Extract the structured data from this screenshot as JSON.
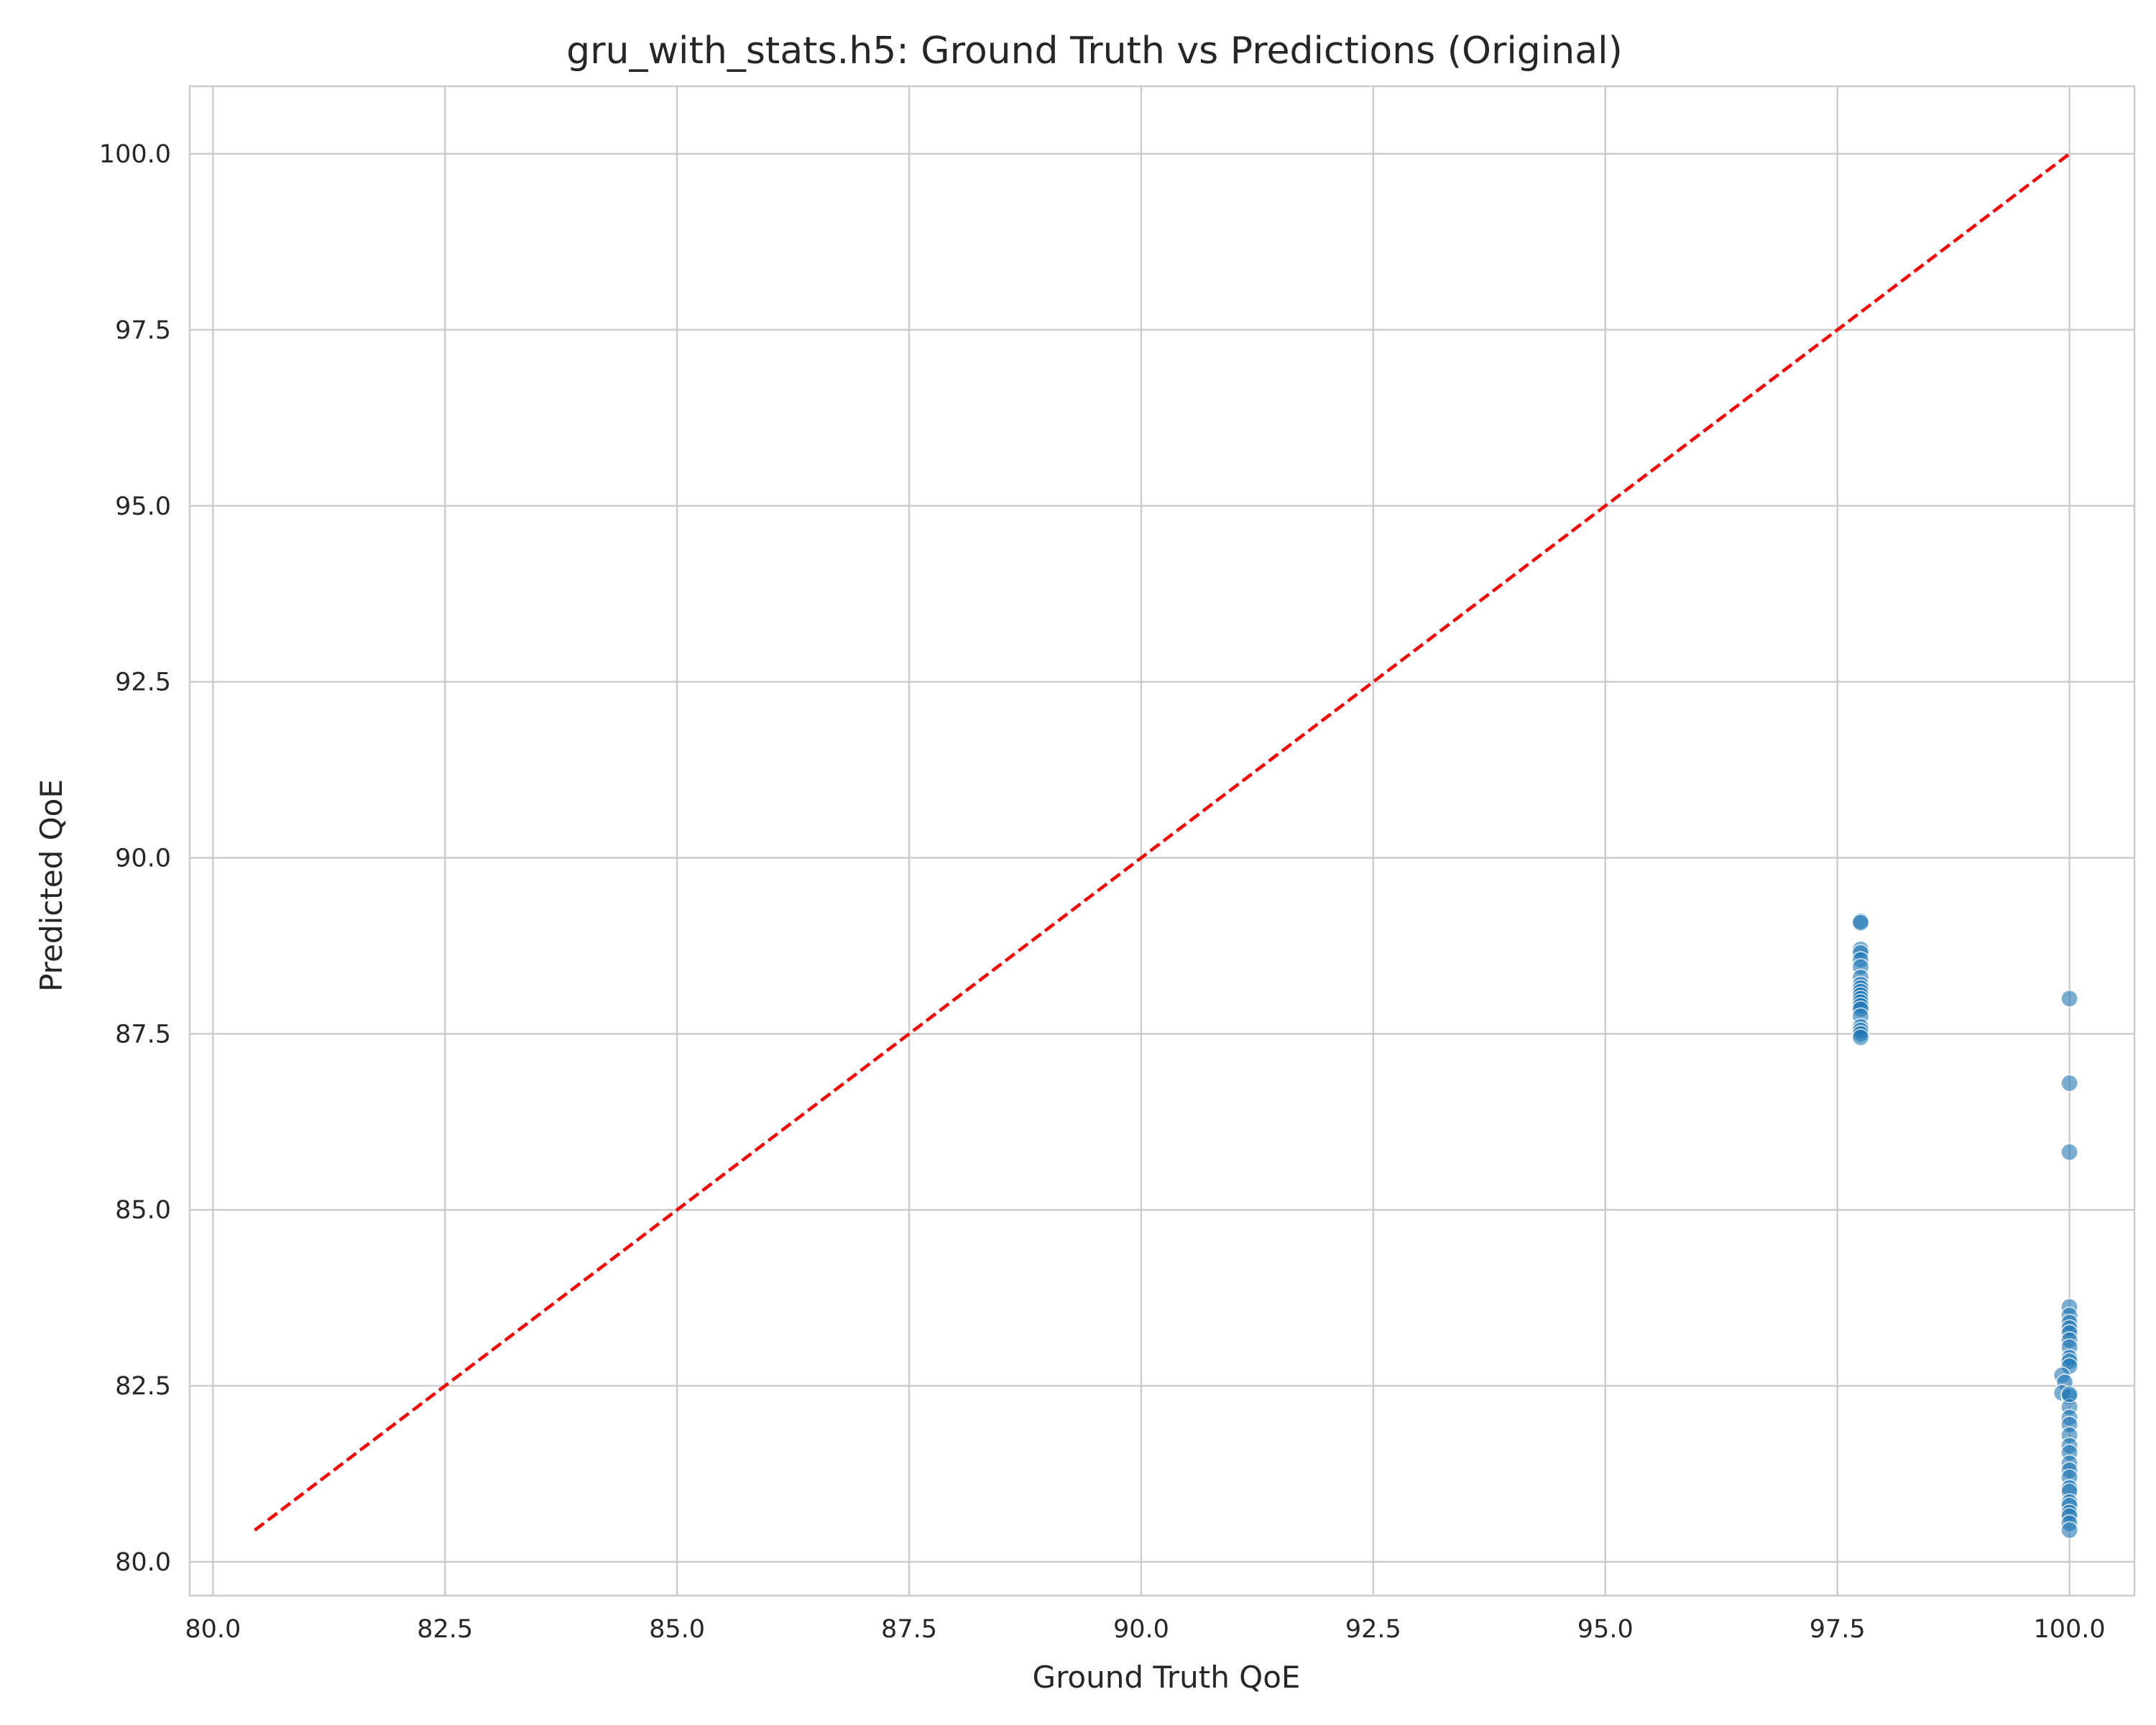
{
  "chart_data": {
    "type": "scatter",
    "title": "gru_with_stats.h5: Ground Truth vs Predictions (Original)",
    "xlabel": "Ground Truth QoE",
    "ylabel": "Predicted QoE",
    "xlim": [
      79.75,
      100.7
    ],
    "ylim": [
      79.52,
      100.96
    ],
    "xticks": [
      "80.0",
      "82.5",
      "85.0",
      "87.5",
      "90.0",
      "92.5",
      "95.0",
      "97.5",
      "100.0"
    ],
    "yticks": [
      "80.0",
      "82.5",
      "85.0",
      "87.5",
      "90.0",
      "92.5",
      "95.0",
      "97.5",
      "100.0"
    ],
    "grid": true,
    "colors": {
      "points": "#1f77b4",
      "reference_line": "#ff0000",
      "grid": "#cccccc",
      "spine": "#cccccc"
    },
    "reference_line": {
      "style": "dashed",
      "x": [
        80.45,
        100.0
      ],
      "y": [
        80.45,
        100.0
      ]
    },
    "series": [
      {
        "x": [
          97.75,
          97.75,
          97.75,
          97.75,
          97.75,
          97.75,
          97.75,
          97.75,
          97.75,
          97.75,
          97.75,
          97.75,
          97.75,
          97.75,
          97.75,
          97.75,
          97.75,
          97.75,
          97.75,
          97.75,
          100.0,
          100.0,
          100.0,
          100.0,
          100.0,
          100.0,
          100.0,
          100.0,
          100.0,
          100.0,
          100.0,
          100.0,
          100.0,
          99.92,
          99.95,
          99.92,
          100.0,
          100.0,
          100.0,
          100.0,
          100.0,
          100.0,
          100.0,
          100.0,
          100.0,
          100.0,
          100.0,
          100.0,
          100.0,
          100.0,
          100.0,
          100.0,
          100.0,
          100.0,
          100.0
        ],
        "y": [
          89.1,
          89.08,
          88.7,
          88.65,
          88.55,
          88.45,
          88.3,
          88.2,
          88.15,
          88.1,
          88.05,
          88.0,
          87.95,
          87.9,
          87.85,
          87.75,
          87.6,
          87.55,
          87.5,
          87.45,
          88.0,
          86.8,
          85.82,
          83.62,
          83.5,
          83.4,
          83.32,
          83.25,
          83.15,
          83.05,
          82.9,
          82.85,
          82.78,
          82.65,
          82.55,
          82.4,
          82.35,
          82.2,
          82.05,
          81.95,
          81.8,
          81.65,
          81.55,
          81.4,
          81.3,
          81.2,
          81.05,
          81.0,
          80.85,
          80.8,
          80.7,
          80.65,
          80.55,
          80.45,
          82.38
        ]
      }
    ]
  }
}
